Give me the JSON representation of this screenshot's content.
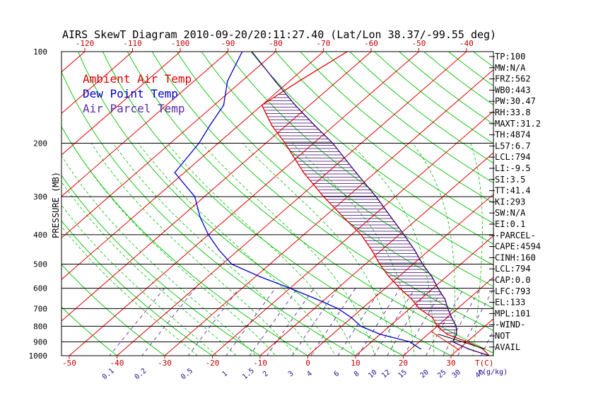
{
  "title": "AIRS SkewT Diagram 2010-09-20/20:11:27.40 (Lat/Lon 38.37/-99.55 deg)",
  "colors": {
    "temp": "#e00000",
    "dewpoint": "#0000cc",
    "parcel": "#3a006a",
    "isotherm": "#e00000",
    "dry_adiabat": "#00c000",
    "moist_adiabat": "#00c000",
    "mixing_ratio": "#5a2aa0",
    "isobar": "#000000"
  },
  "legend": [
    {
      "label": "Ambient Air Temp",
      "color": "#e00000"
    },
    {
      "label": "Dew Point Temp",
      "color": "#0000cc"
    },
    {
      "label": "Air Parcel Temp",
      "color": "#5a2aa0"
    }
  ],
  "axis": {
    "ylabel": "PRESSURE (MB)",
    "xlabel_top_unit": "",
    "xunit_label": "T(C)",
    "mr_unit_label": "r(g/kg)"
  },
  "chart_data": {
    "type": "line",
    "title": "AIRS SkewT Diagram 2010-09-20/20:11:27.40 (Lat/Lon 38.37/-99.55 deg)",
    "xlabel": "T(C)",
    "ylabel": "PRESSURE (MB)",
    "y_scale": "log",
    "ylim": [
      1000,
      100
    ],
    "pressure_ticks": [
      100,
      200,
      300,
      400,
      500,
      600,
      700,
      800,
      900,
      1000
    ],
    "bottom_temp_ticks": [
      -50,
      -40,
      -30,
      -20,
      -10,
      0,
      10,
      20,
      30
    ],
    "top_temp_ticks": [
      -120,
      -110,
      -100,
      -90,
      -80,
      -70,
      -60,
      -50,
      -40
    ],
    "mixing_ratio_ticks": [
      "0.1",
      "0.2",
      "0.5",
      "1",
      "1.5",
      "2",
      "3",
      "4",
      "6",
      "8",
      "10",
      "12",
      "15",
      "20",
      "25",
      "30",
      "40"
    ],
    "series": [
      {
        "name": "Ambient Air Temp",
        "points": [
          {
            "p": 1000,
            "t": 38
          },
          {
            "p": 950,
            "t": 35
          },
          {
            "p": 900,
            "t": 30
          },
          {
            "p": 850,
            "t": 24
          },
          {
            "p": 800,
            "t": 20
          },
          {
            "p": 750,
            "t": 17
          },
          {
            "p": 700,
            "t": 12
          },
          {
            "p": 650,
            "t": 8
          },
          {
            "p": 600,
            "t": 3
          },
          {
            "p": 550,
            "t": -2
          },
          {
            "p": 500,
            "t": -7
          },
          {
            "p": 450,
            "t": -12
          },
          {
            "p": 400,
            "t": -18
          },
          {
            "p": 350,
            "t": -26
          },
          {
            "p": 300,
            "t": -35
          },
          {
            "p": 250,
            "t": -45
          },
          {
            "p": 200,
            "t": -56
          },
          {
            "p": 175,
            "t": -63
          },
          {
            "p": 150,
            "t": -70
          },
          {
            "p": 125,
            "t": -68
          },
          {
            "p": 100,
            "t": -65
          }
        ]
      },
      {
        "name": "Dew Point Temp",
        "points": [
          {
            "p": 950,
            "t": 22
          },
          {
            "p": 900,
            "t": 18
          },
          {
            "p": 850,
            "t": 10
          },
          {
            "p": 800,
            "t": 4
          },
          {
            "p": 750,
            "t": 0
          },
          {
            "p": 700,
            "t": -5
          },
          {
            "p": 650,
            "t": -12
          },
          {
            "p": 600,
            "t": -20
          },
          {
            "p": 550,
            "t": -29
          },
          {
            "p": 500,
            "t": -38
          },
          {
            "p": 450,
            "t": -44
          },
          {
            "p": 400,
            "t": -50
          },
          {
            "p": 350,
            "t": -56
          },
          {
            "p": 300,
            "t": -62
          },
          {
            "p": 250,
            "t": -72
          },
          {
            "p": 200,
            "t": -74
          },
          {
            "p": 175,
            "t": -76
          },
          {
            "p": 150,
            "t": -78
          },
          {
            "p": 125,
            "t": -83
          },
          {
            "p": 100,
            "t": -87
          }
        ]
      },
      {
        "name": "Air Parcel Temp",
        "points": [
          {
            "p": 1000,
            "t": 38
          },
          {
            "p": 950,
            "t": 32
          },
          {
            "p": 900,
            "t": 27
          },
          {
            "p": 850,
            "t": 26
          },
          {
            "p": 800,
            "t": 24
          },
          {
            "p": 750,
            "t": 21
          },
          {
            "p": 700,
            "t": 18
          },
          {
            "p": 650,
            "t": 15
          },
          {
            "p": 600,
            "t": 11
          },
          {
            "p": 550,
            "t": 7
          },
          {
            "p": 500,
            "t": 2
          },
          {
            "p": 450,
            "t": -3
          },
          {
            "p": 400,
            "t": -9
          },
          {
            "p": 350,
            "t": -16
          },
          {
            "p": 300,
            "t": -24
          },
          {
            "p": 250,
            "t": -34
          },
          {
            "p": 200,
            "t": -46
          },
          {
            "p": 175,
            "t": -54
          },
          {
            "p": 150,
            "t": -63
          },
          {
            "p": 125,
            "t": -73
          },
          {
            "p": 100,
            "t": -85
          }
        ]
      }
    ]
  },
  "stats": [
    "TP:100",
    "MW:N/A",
    "FRZ:562",
    "WB0:443",
    "PW:30.47",
    "RH:33.8",
    "MAXT:31.2",
    "TH:4874",
    "L57:6.7",
    "LCL:794",
    "LI:-9.5",
    "SI:3.5",
    "TT:41.4",
    "KI:293",
    "SW:N/A",
    "EI:0.1",
    "-PARCEL-",
    "CAPE:4594",
    "CINH:160",
    "LCL:794",
    "CAP:0.0",
    "LFC:793",
    "EL:133",
    "MPL:101",
    "-WIND-",
    "NOT",
    "AVAIL"
  ]
}
